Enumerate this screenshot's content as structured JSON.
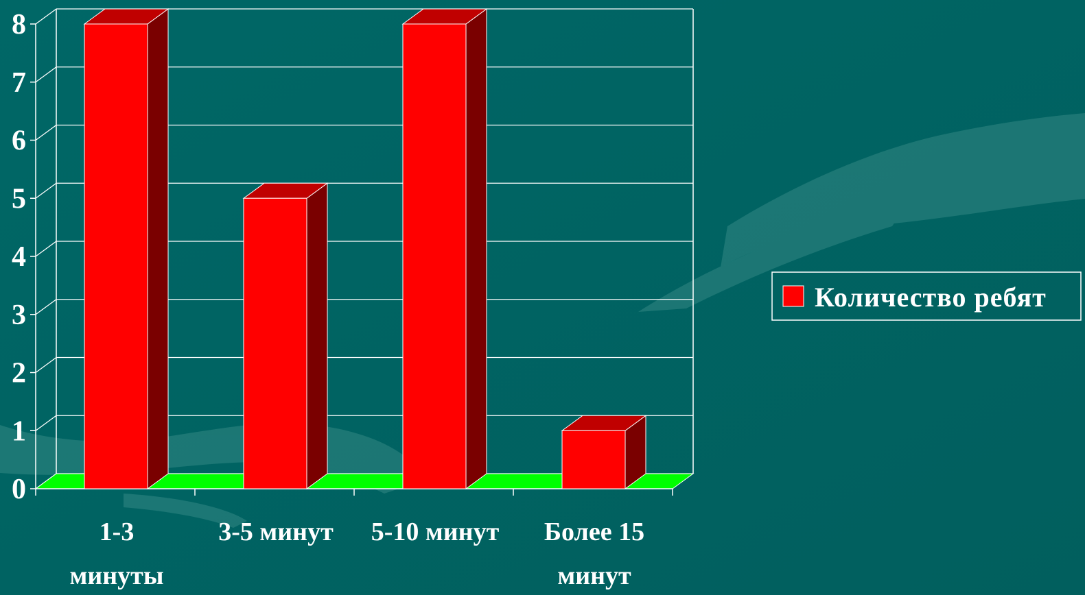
{
  "chart_data": {
    "type": "bar",
    "title": "",
    "xlabel": "",
    "ylabel": "",
    "ylim": [
      0,
      8
    ],
    "y_ticks": [
      "0",
      "1",
      "2",
      "3",
      "4",
      "5",
      "6",
      "7",
      "8"
    ],
    "categories": [
      [
        "1-3",
        "минуты"
      ],
      [
        "3-5 минут"
      ],
      [
        "5-10 минут"
      ],
      [
        "Более 15",
        "минут"
      ]
    ],
    "series": [
      {
        "name": "Количество ребят",
        "values": [
          8,
          5,
          8,
          1
        ]
      }
    ],
    "grid": true,
    "legend_position": "right",
    "colors": {
      "bar_front": "#ff0000",
      "bar_side": "#7a0000",
      "bar_top": "#c00000",
      "floor": "#00ff00",
      "grid": "#ffffff",
      "background": "#006766"
    }
  }
}
